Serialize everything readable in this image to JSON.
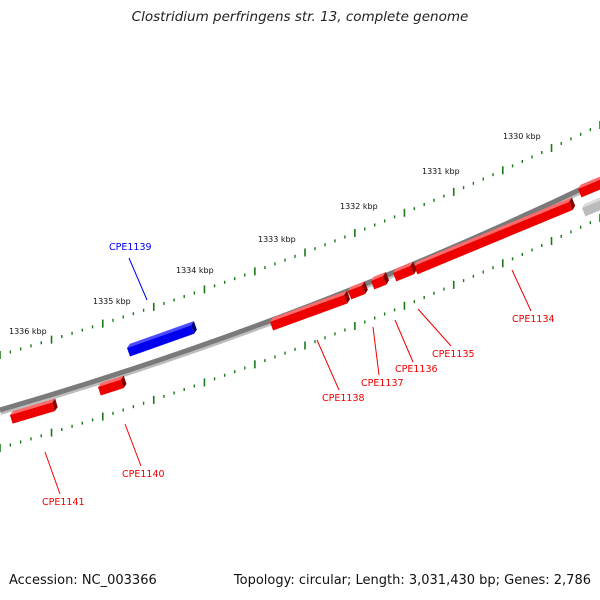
{
  "title": "Clostridium perfringens str. 13, complete genome",
  "footer": {
    "accession": "Accession: NC_003366",
    "stats": "Topology: circular; Length: 3,031,430 bp; Genes: 2,786"
  },
  "colors": {
    "forward_gene": "#0000ee",
    "reverse_gene": "#ee0000",
    "partial_gene": "#bbbbbb",
    "backbone": "#7a7a7a",
    "ticks": "#1a7a1a"
  },
  "kbp_markers": [
    {
      "label": "1330 kbp"
    },
    {
      "label": "1331 kbp"
    },
    {
      "label": "1332 kbp"
    },
    {
      "label": "1333 kbp"
    },
    {
      "label": "1334 kbp"
    },
    {
      "label": "1335 kbp"
    },
    {
      "label": "1336 kbp"
    }
  ],
  "genes": [
    {
      "name": "CPE1134",
      "strand": "reverse"
    },
    {
      "name": "CPE1135",
      "strand": "reverse"
    },
    {
      "name": "CPE1136",
      "strand": "reverse"
    },
    {
      "name": "CPE1137",
      "strand": "reverse"
    },
    {
      "name": "CPE1138",
      "strand": "reverse"
    },
    {
      "name": "CPE1139",
      "strand": "forward"
    },
    {
      "name": "CPE1140",
      "strand": "reverse"
    },
    {
      "name": "CPE1141",
      "strand": "reverse"
    }
  ]
}
